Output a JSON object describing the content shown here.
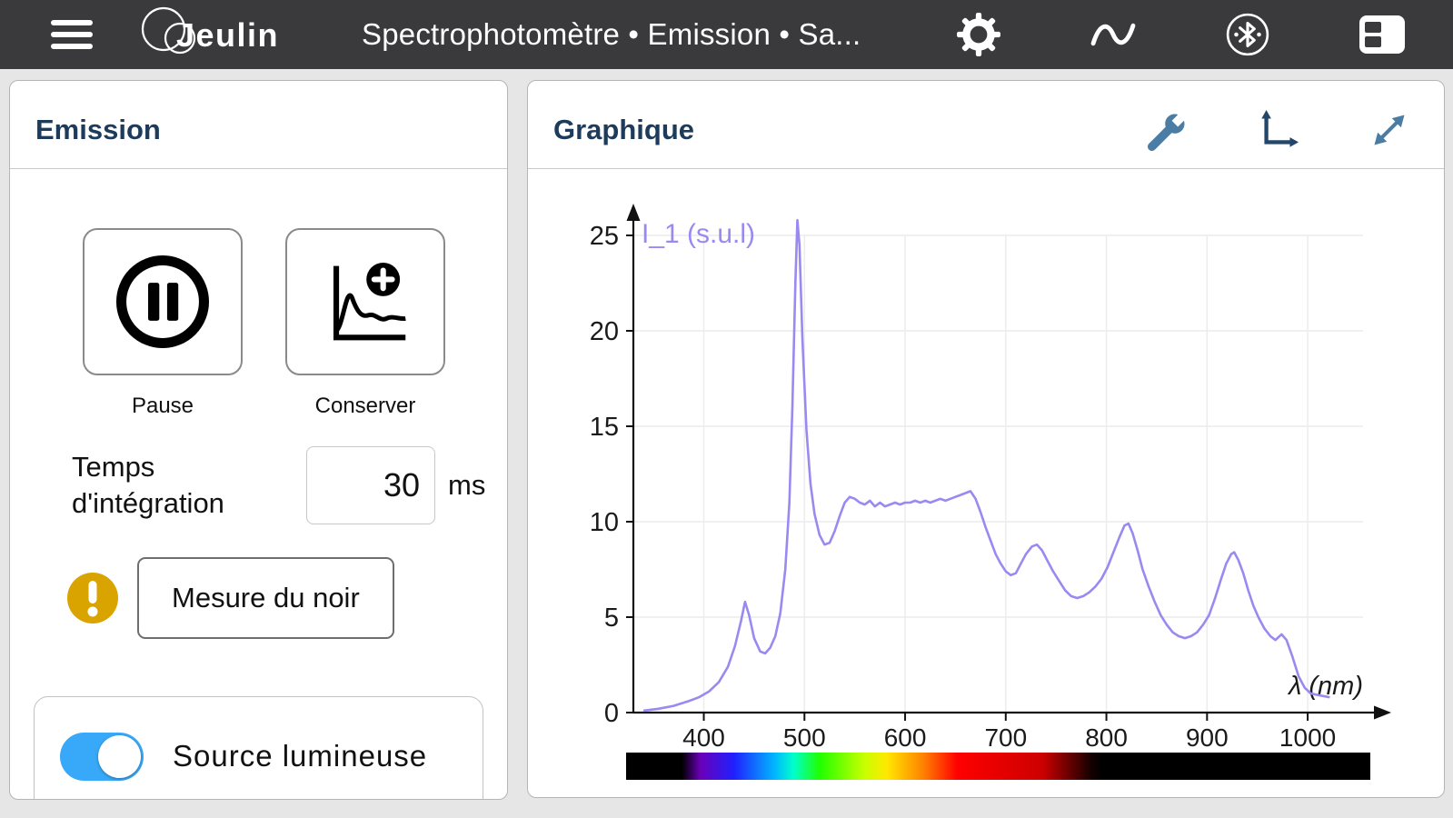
{
  "topbar": {
    "title": "Spectrophotomètre • Emission • Sa...",
    "logo_text": "Jeulin",
    "icons": [
      "menu-icon",
      "gear-icon",
      "wave-icon",
      "bluetooth-icon",
      "layout-icon"
    ],
    "bg_color": "#3a3a3c"
  },
  "emission_panel": {
    "title": "Emission",
    "pause_label": "Pause",
    "conserver_label": "Conserver",
    "integration_label": "Temps d'intégration",
    "integration_value": "30",
    "integration_unit": "ms",
    "mesure_button": "Mesure du noir",
    "source_label": "Source  lumineuse",
    "source_toggle_state": "on",
    "toggle_color": "#38a9f8",
    "warning_color": "#d9a300"
  },
  "graph_panel": {
    "title": "Graphique",
    "icons": [
      "wrench-icon",
      "axes-icon",
      "expand-icon"
    ],
    "icon_color": "#4b7ca3",
    "heading_color": "#1d3b5a"
  },
  "chart_data": {
    "type": "line",
    "series_label": "I_1 (s.u.l)",
    "xlabel": "λ (nm)",
    "x_ticks": [
      400,
      500,
      600,
      700,
      800,
      900,
      1000
    ],
    "y_ticks": [
      0,
      5,
      10,
      15,
      20,
      25
    ],
    "xlim": [
      330,
      1055
    ],
    "ylim": [
      0,
      25
    ],
    "grid": true,
    "line_color": "#988af0",
    "axis_color": "#111111",
    "points": [
      [
        340,
        0.1
      ],
      [
        355,
        0.2
      ],
      [
        370,
        0.35
      ],
      [
        385,
        0.6
      ],
      [
        395,
        0.8
      ],
      [
        405,
        1.1
      ],
      [
        415,
        1.6
      ],
      [
        424,
        2.4
      ],
      [
        431,
        3.5
      ],
      [
        437,
        4.8
      ],
      [
        441,
        5.8
      ],
      [
        445,
        5.1
      ],
      [
        450,
        3.9
      ],
      [
        456,
        3.2
      ],
      [
        461,
        3.1
      ],
      [
        466,
        3.4
      ],
      [
        471,
        4.0
      ],
      [
        476,
        5.2
      ],
      [
        481,
        7.5
      ],
      [
        485,
        11
      ],
      [
        488,
        16
      ],
      [
        491,
        22.5
      ],
      [
        493,
        25.8
      ],
      [
        495,
        24.5
      ],
      [
        498,
        19.5
      ],
      [
        502,
        14.8
      ],
      [
        506,
        12
      ],
      [
        510,
        10.4
      ],
      [
        515,
        9.3
      ],
      [
        520,
        8.8
      ],
      [
        525,
        8.9
      ],
      [
        530,
        9.5
      ],
      [
        535,
        10.3
      ],
      [
        540,
        11
      ],
      [
        545,
        11.3
      ],
      [
        550,
        11.2
      ],
      [
        555,
        11
      ],
      [
        560,
        10.9
      ],
      [
        565,
        11.1
      ],
      [
        570,
        10.8
      ],
      [
        575,
        11
      ],
      [
        580,
        10.8
      ],
      [
        585,
        10.9
      ],
      [
        590,
        11
      ],
      [
        595,
        10.9
      ],
      [
        600,
        11
      ],
      [
        605,
        11
      ],
      [
        610,
        11.1
      ],
      [
        615,
        11
      ],
      [
        620,
        11.1
      ],
      [
        625,
        11
      ],
      [
        630,
        11.1
      ],
      [
        635,
        11.2
      ],
      [
        640,
        11.1
      ],
      [
        645,
        11.2
      ],
      [
        650,
        11.3
      ],
      [
        655,
        11.4
      ],
      [
        660,
        11.5
      ],
      [
        665,
        11.6
      ],
      [
        670,
        11.2
      ],
      [
        675,
        10.5
      ],
      [
        680,
        9.7
      ],
      [
        685,
        9
      ],
      [
        690,
        8.3
      ],
      [
        695,
        7.8
      ],
      [
        700,
        7.4
      ],
      [
        705,
        7.2
      ],
      [
        710,
        7.3
      ],
      [
        715,
        7.8
      ],
      [
        720,
        8.3
      ],
      [
        726,
        8.7
      ],
      [
        731,
        8.8
      ],
      [
        736,
        8.5
      ],
      [
        741,
        8
      ],
      [
        747,
        7.4
      ],
      [
        753,
        6.9
      ],
      [
        759,
        6.4
      ],
      [
        765,
        6.1
      ],
      [
        771,
        6
      ],
      [
        777,
        6.1
      ],
      [
        783,
        6.3
      ],
      [
        789,
        6.6
      ],
      [
        795,
        7
      ],
      [
        801,
        7.6
      ],
      [
        807,
        8.4
      ],
      [
        813,
        9.2
      ],
      [
        818,
        9.8
      ],
      [
        822,
        9.9
      ],
      [
        826,
        9.4
      ],
      [
        831,
        8.5
      ],
      [
        836,
        7.5
      ],
      [
        842,
        6.6
      ],
      [
        848,
        5.8
      ],
      [
        854,
        5.1
      ],
      [
        860,
        4.6
      ],
      [
        866,
        4.2
      ],
      [
        872,
        4
      ],
      [
        878,
        3.9
      ],
      [
        884,
        4
      ],
      [
        890,
        4.2
      ],
      [
        896,
        4.6
      ],
      [
        902,
        5.1
      ],
      [
        908,
        6
      ],
      [
        914,
        7
      ],
      [
        919,
        7.8
      ],
      [
        924,
        8.3
      ],
      [
        927,
        8.4
      ],
      [
        931,
        8
      ],
      [
        936,
        7.3
      ],
      [
        941,
        6.4
      ],
      [
        946,
        5.6
      ],
      [
        951,
        5
      ],
      [
        957,
        4.4
      ],
      [
        963,
        4
      ],
      [
        968,
        3.8
      ],
      [
        974,
        4.1
      ],
      [
        979,
        3.8
      ],
      [
        985,
        2.9
      ],
      [
        991,
        1.9
      ],
      [
        997,
        1.3
      ],
      [
        1003,
        1
      ],
      [
        1012,
        0.9
      ],
      [
        1022,
        0.8
      ]
    ],
    "spectrum_bar": {
      "stops": [
        {
          "at": 0,
          "color": "#000000"
        },
        {
          "at": 0.075,
          "color": "#000000"
        },
        {
          "at": 0.1,
          "color": "#6a00b8"
        },
        {
          "at": 0.145,
          "color": "#2020ff"
        },
        {
          "at": 0.2,
          "color": "#00b7ff"
        },
        {
          "at": 0.225,
          "color": "#00ffcc"
        },
        {
          "at": 0.26,
          "color": "#20ff00"
        },
        {
          "at": 0.32,
          "color": "#c8ff00"
        },
        {
          "at": 0.35,
          "color": "#ffe800"
        },
        {
          "at": 0.4,
          "color": "#ff8000"
        },
        {
          "at": 0.445,
          "color": "#ff0000"
        },
        {
          "at": 0.56,
          "color": "#cc0000"
        },
        {
          "at": 0.625,
          "color": "#140000"
        },
        {
          "at": 0.64,
          "color": "#000000"
        },
        {
          "at": 1,
          "color": "#000000"
        }
      ]
    }
  }
}
